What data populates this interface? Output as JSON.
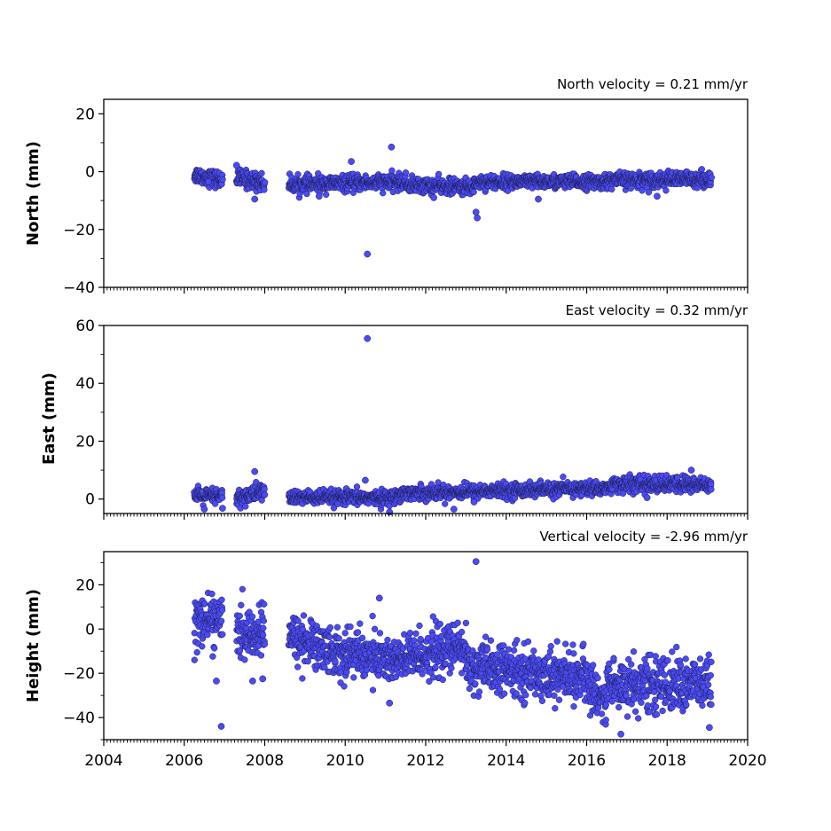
{
  "chart_data": [
    {
      "type": "scatter",
      "title": "North velocity = 0.21 mm/yr",
      "ylabel": "North (mm)",
      "xlabel": "",
      "xlim": [
        2004,
        2020
      ],
      "ylim": [
        -40,
        25
      ],
      "yticks": [
        20,
        0,
        -20,
        -40
      ],
      "ytick_labels": [
        "20",
        "0",
        "−20",
        "−40"
      ],
      "xticks": [
        2004,
        2006,
        2008,
        2010,
        2012,
        2014,
        2016,
        2018,
        2020
      ],
      "xtick_labels": [],
      "marker_color": "#4b4bf5",
      "grid": false,
      "segments": [
        {
          "x": [
            2006.25,
            2006.95
          ],
          "y": [
            -1,
            -3
          ],
          "noise": 1.4
        },
        {
          "x": [
            2007.3,
            2008.0
          ],
          "y": [
            -2,
            -4
          ],
          "noise": 1.5
        },
        {
          "x": [
            2008.6,
            2011.5
          ],
          "y": [
            -4.5,
            -3.5
          ],
          "noise": 1.3
        },
        {
          "x": [
            2011.5,
            2013.2
          ],
          "y": [
            -4.5,
            -5.5
          ],
          "noise": 1.3
        },
        {
          "x": [
            2013.2,
            2016.5
          ],
          "y": [
            -3.5,
            -3.5
          ],
          "noise": 1.2
        },
        {
          "x": [
            2016.5,
            2019.1
          ],
          "y": [
            -3,
            -2.5
          ],
          "noise": 1.3
        }
      ],
      "outliers": [
        {
          "x": 2006.6,
          "y": -3.5
        },
        {
          "x": 2007.3,
          "y": 2.2
        },
        {
          "x": 2007.75,
          "y": -9.5
        },
        {
          "x": 2009.35,
          "y": -8.5
        },
        {
          "x": 2010.15,
          "y": 3.5
        },
        {
          "x": 2010.55,
          "y": -28.5
        },
        {
          "x": 2011.15,
          "y": 8.5
        },
        {
          "x": 2012.2,
          "y": -9.0
        },
        {
          "x": 2013.25,
          "y": -14.0
        },
        {
          "x": 2013.28,
          "y": -16.0
        },
        {
          "x": 2014.8,
          "y": -9.5
        },
        {
          "x": 2017.75,
          "y": -8.5
        }
      ]
    },
    {
      "type": "scatter",
      "title": "East velocity = 0.32 mm/yr",
      "ylabel": "East (mm)",
      "xlabel": "",
      "xlim": [
        2004,
        2020
      ],
      "ylim": [
        -5,
        60
      ],
      "yticks": [
        60,
        40,
        20,
        0
      ],
      "ytick_labels": [
        "60",
        "40",
        "20",
        "0"
      ],
      "xticks": [
        2004,
        2006,
        2008,
        2010,
        2012,
        2014,
        2016,
        2018,
        2020
      ],
      "xtick_labels": [],
      "marker_color": "#4b4bf5",
      "grid": false,
      "segments": [
        {
          "x": [
            2006.25,
            2006.95
          ],
          "y": [
            1,
            1
          ],
          "noise": 1.3
        },
        {
          "x": [
            2007.3,
            2008.0
          ],
          "y": [
            0,
            3
          ],
          "noise": 1.5
        },
        {
          "x": [
            2008.6,
            2011.3
          ],
          "y": [
            0.5,
            0.5
          ],
          "noise": 1.2
        },
        {
          "x": [
            2011.3,
            2016.6
          ],
          "y": [
            2,
            3.8
          ],
          "noise": 1.2
        },
        {
          "x": [
            2016.6,
            2019.1
          ],
          "y": [
            5,
            5
          ],
          "noise": 1.4
        }
      ],
      "outliers": [
        {
          "x": 2006.5,
          "y": -3.5
        },
        {
          "x": 2006.95,
          "y": -3.2
        },
        {
          "x": 2007.75,
          "y": 9.5
        },
        {
          "x": 2010.55,
          "y": 55.5
        },
        {
          "x": 2010.5,
          "y": 6.5
        },
        {
          "x": 2011.1,
          "y": -4.5
        },
        {
          "x": 2012.7,
          "y": -3.5
        },
        {
          "x": 2013.2,
          "y": -1.0
        },
        {
          "x": 2017.5,
          "y": 0.5
        },
        {
          "x": 2018.6,
          "y": 10.0
        }
      ]
    },
    {
      "type": "scatter",
      "title": "Vertical velocity = -2.96 mm/yr",
      "ylabel": "Height (mm)",
      "xlabel": "",
      "xlim": [
        2004,
        2020
      ],
      "ylim": [
        -50,
        35
      ],
      "yticks": [
        20,
        0,
        -20,
        -40
      ],
      "ytick_labels": [
        "20",
        "0",
        "−20",
        "−40"
      ],
      "xticks": [
        2004,
        2006,
        2008,
        2010,
        2012,
        2014,
        2016,
        2018,
        2020
      ],
      "xtick_labels": [
        "2004",
        "2006",
        "2008",
        "2010",
        "2012",
        "2014",
        "2016",
        "2018",
        "2020"
      ],
      "marker_color": "#4b4bf5",
      "grid": false,
      "segments": [
        {
          "x": [
            2006.25,
            2006.95
          ],
          "y": [
            3,
            5
          ],
          "noise": 5.5
        },
        {
          "x": [
            2007.3,
            2008.0
          ],
          "y": [
            -3,
            -2
          ],
          "noise": 5.5
        },
        {
          "x": [
            2008.6,
            2010.0
          ],
          "y": [
            -3,
            -12
          ],
          "noise": 5.5
        },
        {
          "x": [
            2010.0,
            2011.5
          ],
          "y": [
            -10,
            -15
          ],
          "noise": 5.5
        },
        {
          "x": [
            2011.5,
            2013.0
          ],
          "y": [
            -13,
            -8
          ],
          "noise": 5.5
        },
        {
          "x": [
            2013.0,
            2016.0
          ],
          "y": [
            -17,
            -22
          ],
          "noise": 5.5
        },
        {
          "x": [
            2016.0,
            2016.5
          ],
          "y": [
            -25,
            -33
          ],
          "noise": 5.0
        },
        {
          "x": [
            2016.5,
            2019.1
          ],
          "y": [
            -25,
            -25
          ],
          "noise": 6.0
        }
      ],
      "outliers": [
        {
          "x": 2006.8,
          "y": -23.5
        },
        {
          "x": 2006.92,
          "y": -44.0
        },
        {
          "x": 2007.7,
          "y": -23.5
        },
        {
          "x": 2007.95,
          "y": -22.5
        },
        {
          "x": 2010.85,
          "y": 14.0
        },
        {
          "x": 2011.1,
          "y": -33.5
        },
        {
          "x": 2013.25,
          "y": 30.5
        },
        {
          "x": 2016.85,
          "y": -47.5
        },
        {
          "x": 2019.05,
          "y": -44.5
        }
      ]
    }
  ]
}
